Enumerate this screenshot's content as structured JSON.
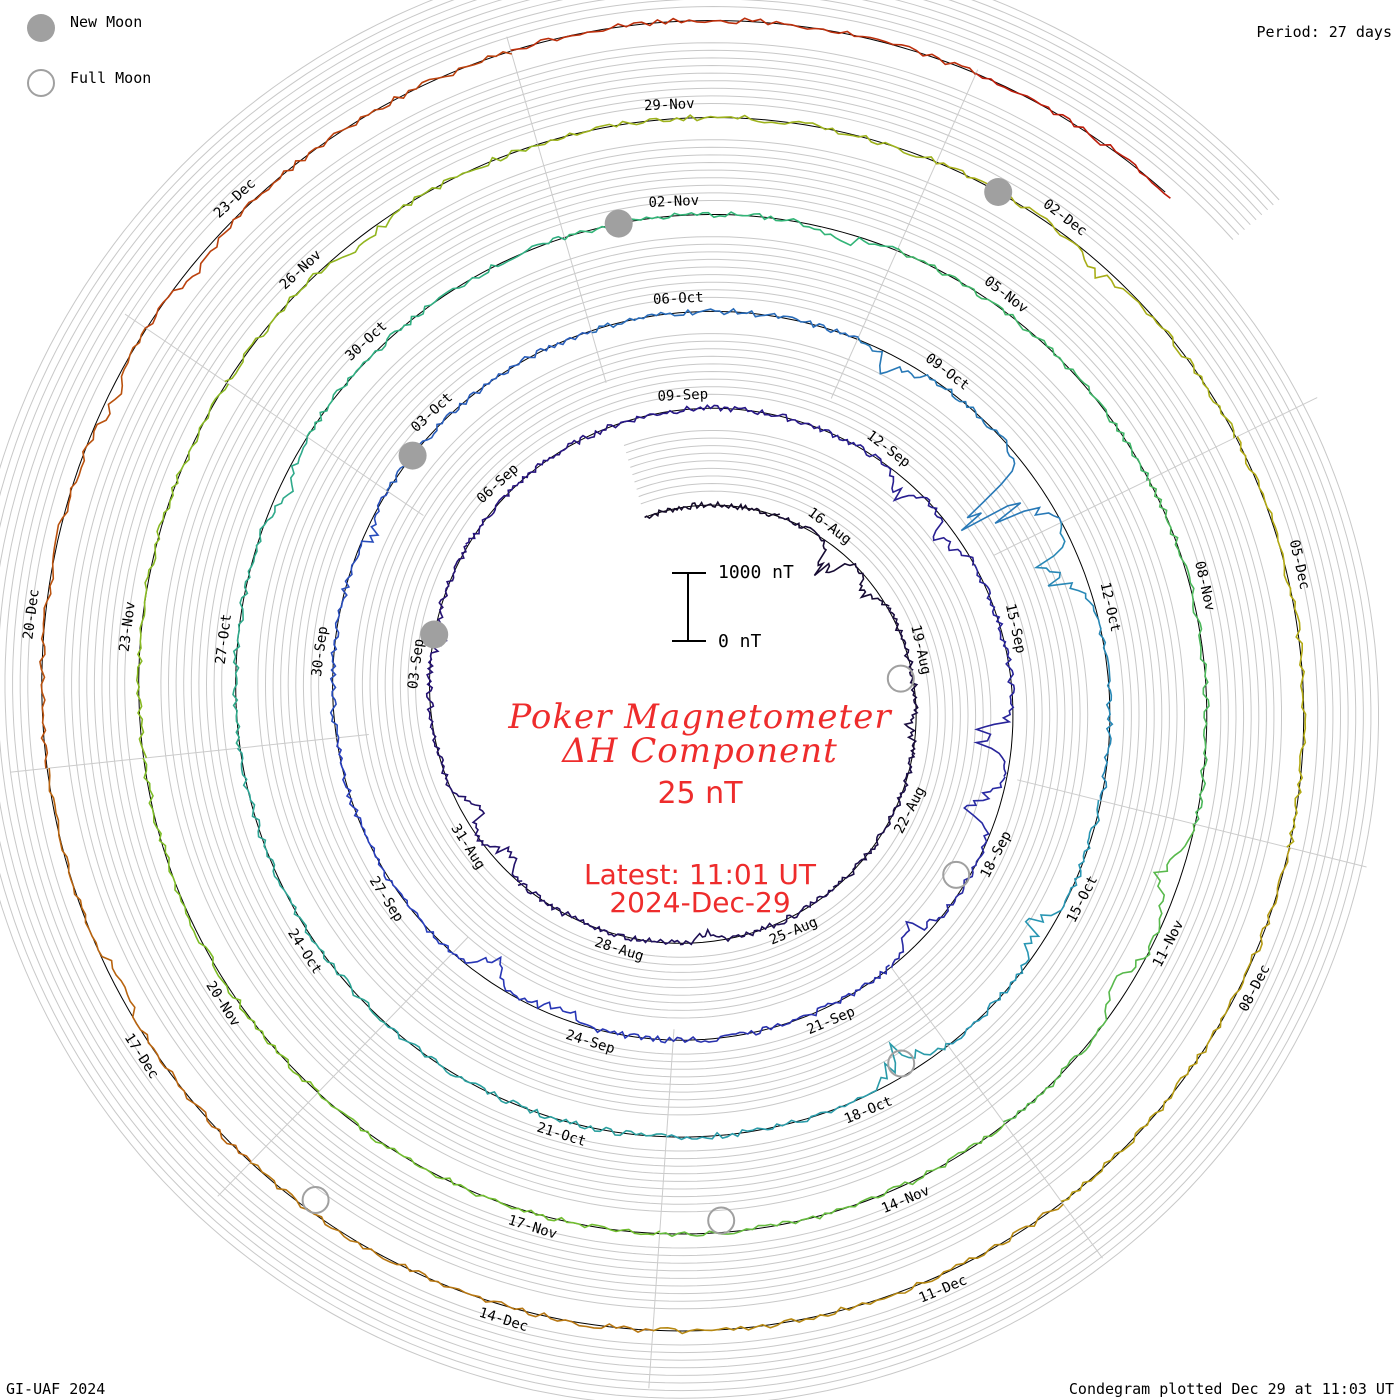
{
  "legend": {
    "new_moon_label": "New Moon",
    "full_moon_label": "Full Moon",
    "new_moon_color": "#a0a0a0",
    "full_moon_color": "#a0a0a0"
  },
  "header": {
    "period_label": "Period: 27 days"
  },
  "footer": {
    "credit": "GI-UAF 2024",
    "plotted": "Condegram plotted Dec 29 at 11:03 UT"
  },
  "center": {
    "title_line1": "Poker Magnetometer",
    "title_line2": "ΔH Component",
    "scale_value": "25 nT",
    "latest_time": "Latest: 11:01 UT",
    "latest_date": "2024-Dec-29",
    "text_color": "#ee2c2c"
  },
  "scale_bar": {
    "top_label": "1000 nT",
    "bottom_label": "0 nT"
  },
  "chart_data": {
    "type": "line",
    "title": "Poker Magnetometer ΔH Component",
    "subtitle": "25 nT",
    "period_days": 27,
    "scale_bar_nT": [
      0,
      1000
    ],
    "data_start": "2024-08-12",
    "data_end": "2024-12-29",
    "date_ticks": [
      {
        "label": "16-Aug",
        "date": "2024-08-16"
      },
      {
        "label": "19-Aug",
        "date": "2024-08-19"
      },
      {
        "label": "22-Aug",
        "date": "2024-08-22"
      },
      {
        "label": "25-Aug",
        "date": "2024-08-25"
      },
      {
        "label": "28-Aug",
        "date": "2024-08-28"
      },
      {
        "label": "31-Aug",
        "date": "2024-08-31"
      },
      {
        "label": "03-Sep",
        "date": "2024-09-03"
      },
      {
        "label": "06-Sep",
        "date": "2024-09-06"
      },
      {
        "label": "09-Sep",
        "date": "2024-09-09"
      },
      {
        "label": "12-Sep",
        "date": "2024-09-12"
      },
      {
        "label": "15-Sep",
        "date": "2024-09-15"
      },
      {
        "label": "18-Sep",
        "date": "2024-09-18"
      },
      {
        "label": "21-Sep",
        "date": "2024-09-21"
      },
      {
        "label": "24-Sep",
        "date": "2024-09-24"
      },
      {
        "label": "27-Sep",
        "date": "2024-09-27"
      },
      {
        "label": "30-Sep",
        "date": "2024-09-30"
      },
      {
        "label": "03-Oct",
        "date": "2024-10-03"
      },
      {
        "label": "06-Oct",
        "date": "2024-10-06"
      },
      {
        "label": "09-Oct",
        "date": "2024-10-09"
      },
      {
        "label": "12-Oct",
        "date": "2024-10-12"
      },
      {
        "label": "15-Oct",
        "date": "2024-10-15"
      },
      {
        "label": "18-Oct",
        "date": "2024-10-18"
      },
      {
        "label": "21-Oct",
        "date": "2024-10-21"
      },
      {
        "label": "24-Oct",
        "date": "2024-10-24"
      },
      {
        "label": "27-Oct",
        "date": "2024-10-27"
      },
      {
        "label": "30-Oct",
        "date": "2024-10-30"
      },
      {
        "label": "02-Nov",
        "date": "2024-11-02"
      },
      {
        "label": "05-Nov",
        "date": "2024-11-05"
      },
      {
        "label": "08-Nov",
        "date": "2024-11-08"
      },
      {
        "label": "11-Nov",
        "date": "2024-11-11"
      },
      {
        "label": "14-Nov",
        "date": "2024-11-14"
      },
      {
        "label": "17-Nov",
        "date": "2024-11-17"
      },
      {
        "label": "20-Nov",
        "date": "2024-11-20"
      },
      {
        "label": "23-Nov",
        "date": "2024-11-23"
      },
      {
        "label": "26-Nov",
        "date": "2024-11-26"
      },
      {
        "label": "29-Nov",
        "date": "2024-11-29"
      },
      {
        "label": "02-Dec",
        "date": "2024-12-02"
      },
      {
        "label": "05-Dec",
        "date": "2024-12-05"
      },
      {
        "label": "08-Dec",
        "date": "2024-12-08"
      },
      {
        "label": "11-Dec",
        "date": "2024-12-11"
      },
      {
        "label": "14-Dec",
        "date": "2024-12-14"
      },
      {
        "label": "17-Dec",
        "date": "2024-12-17"
      },
      {
        "label": "20-Dec",
        "date": "2024-12-20"
      },
      {
        "label": "23-Dec",
        "date": "2024-12-23"
      }
    ],
    "disturbances": [
      {
        "date": "2024-08-16",
        "nT": 420
      },
      {
        "date": "2024-08-17",
        "nT": 160
      },
      {
        "date": "2024-08-20",
        "nT": 110
      },
      {
        "date": "2024-08-26",
        "nT": 140
      },
      {
        "date": "2024-08-30",
        "nT": 250
      },
      {
        "date": "2024-08-31",
        "nT": 320
      },
      {
        "date": "2024-09-03",
        "nT": 150
      },
      {
        "date": "2024-09-12",
        "nT": 250
      },
      {
        "date": "2024-09-13",
        "nT": 300
      },
      {
        "date": "2024-09-16",
        "nT": 450
      },
      {
        "date": "2024-09-17",
        "nT": 520
      },
      {
        "date": "2024-09-19",
        "nT": 300
      },
      {
        "date": "2024-09-24",
        "nT": 200
      },
      {
        "date": "2024-09-25",
        "nT": 300
      },
      {
        "date": "2024-10-01",
        "nT": 120
      },
      {
        "date": "2024-10-08",
        "nT": 250
      },
      {
        "date": "2024-10-10",
        "nT": 1000
      },
      {
        "date": "2024-10-11",
        "nT": 650
      },
      {
        "date": "2024-10-15",
        "nT": 250
      },
      {
        "date": "2024-10-17",
        "nT": 350
      },
      {
        "date": "2024-10-28",
        "nT": 150
      },
      {
        "date": "2024-11-03",
        "nT": 130
      },
      {
        "date": "2024-11-10",
        "nT": 300
      },
      {
        "date": "2024-11-11",
        "nT": 200
      },
      {
        "date": "2024-11-26",
        "nT": 120
      },
      {
        "date": "2024-12-02",
        "nT": 180
      },
      {
        "date": "2024-12-17",
        "nT": 100
      },
      {
        "date": "2024-12-21",
        "nT": 150
      },
      {
        "date": "2024-12-22",
        "nT": 120
      }
    ],
    "new_moons": [
      "2024-09-03",
      "2024-10-02",
      "2024-11-01",
      "2024-12-01"
    ],
    "full_moons": [
      "2024-08-19",
      "2024-09-18",
      "2024-10-17",
      "2024-11-15",
      "2024-12-15"
    ]
  }
}
